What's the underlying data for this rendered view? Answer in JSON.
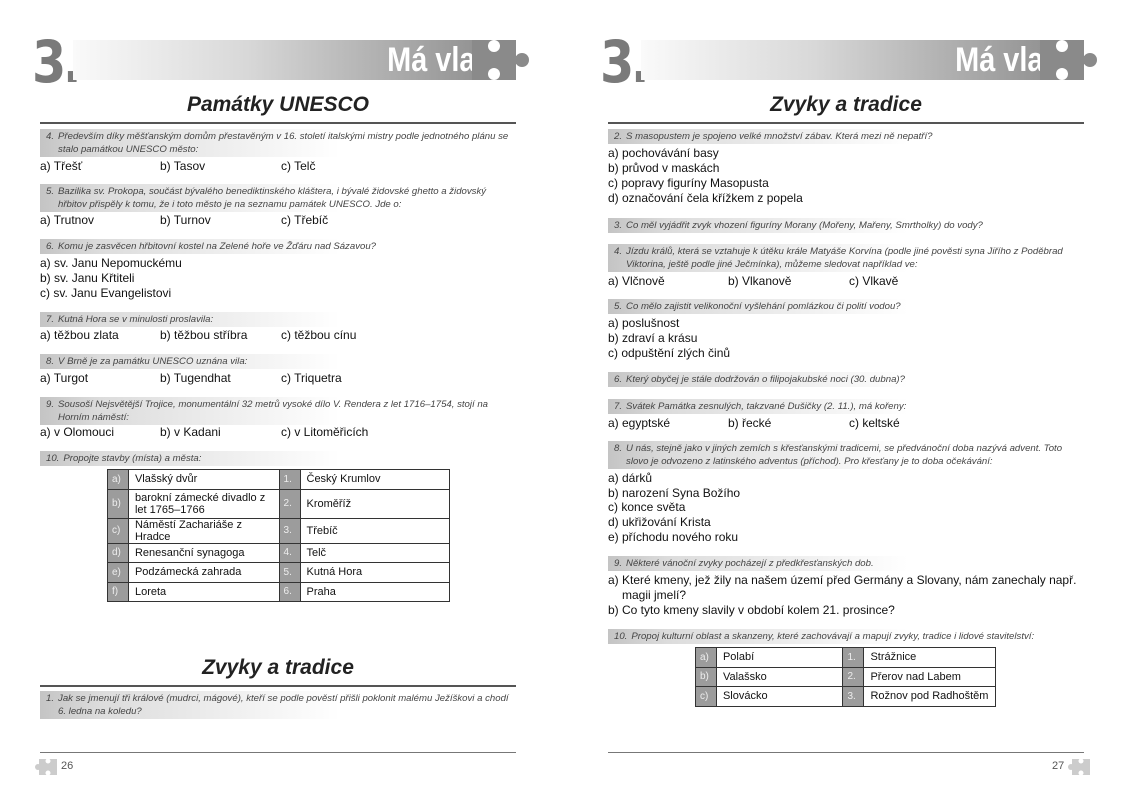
{
  "colors": {
    "band_dark": "#8a8a8a",
    "label_cell": "#9c9c9c",
    "rule": "#555555"
  },
  "left": {
    "chapter_number": "3.",
    "chapter_title": "Má vlast",
    "section_title": "Památky UNESCO",
    "questions": [
      {
        "num": "4.",
        "text": "Především díky měšťanským domům přestavěným v 16. století italskými mistry podle jednotného plánu se stalo památkou UNESCO město:",
        "answers": [
          "a) Třešť",
          "b) Tasov",
          "c) Telč"
        ],
        "inline": true
      },
      {
        "num": "5.",
        "text": "Bazilika sv. Prokopa, součást bývalého benediktinského kláštera, i bývalé židovské ghetto a židovský hřbitov přispěly k tomu, že i toto město je na seznamu památek UNESCO. Jde o:",
        "answers": [
          "a) Trutnov",
          "b) Turnov",
          "c) Třebíč"
        ],
        "inline": true
      },
      {
        "num": "6.",
        "text": "Komu je zasvěcen hřbitovní kostel na Zelené hoře ve Žďáru nad Sázavou?",
        "answers": [
          "a)  sv. Janu Nepomuckému",
          "b)  sv. Janu Křtiteli",
          "c)  sv. Janu Evangelistovi"
        ],
        "inline": false
      },
      {
        "num": "7.",
        "text": "Kutná Hora se v minulosti proslavila:",
        "answers": [
          "a) těžbou zlata",
          "b) těžbou stříbra",
          "c) těžbou cínu"
        ],
        "inline": true
      },
      {
        "num": "8.",
        "text": "V Brně je za památku UNESCO uznána vila:",
        "answers": [
          "a) Turgot",
          "b) Tugendhat",
          "c) Triquetra"
        ],
        "inline": true
      },
      {
        "num": "9.",
        "text": "Sousoší Nejsvětější Trojice, monumentální 32 metrů vysoké dílo V. Rendera z let 1716–1754, stojí na Horním náměstí:",
        "answers": [
          "a) v Olomouci",
          "b) v Kadani",
          "c) v Litoměřicích"
        ],
        "inline": true
      },
      {
        "num": "10.",
        "text": "Propojte stavby (místa) a města:",
        "answers": [],
        "inline": true
      }
    ],
    "table": [
      [
        "a)",
        "Vlašský dvůr",
        "1.",
        "Český Krumlov"
      ],
      [
        "b)",
        "barokní zámecké divadlo z let 1765–1766",
        "2.",
        "Kroměříž"
      ],
      [
        "c)",
        "Náměstí Zachariáše z Hradce",
        "3.",
        "Třebíč"
      ],
      [
        "d)",
        "Renesanční synagoga",
        "4.",
        "Telč"
      ],
      [
        "e)",
        "Podzámecká zahrada",
        "5.",
        "Kutná Hora"
      ],
      [
        "f)",
        "Loreta",
        "6.",
        "Praha"
      ]
    ],
    "section2_title": "Zvyky a tradice",
    "section2_questions": [
      {
        "num": "1.",
        "text": "Jak se jmenují tři králové (mudrci, mágové), kteří se podle pověstí přišli poklonit malému Ježíškovi a chodí 6. ledna na koledu?",
        "answers": [],
        "inline": true
      }
    ],
    "page_number": "26"
  },
  "right": {
    "chapter_number": "3.",
    "chapter_title": "Má vlast",
    "section_title": "Zvyky a tradice",
    "questions": [
      {
        "num": "2.",
        "text": "S masopustem je spojeno velké množství zábav. Která mezi ně nepatří?",
        "answers": [
          "a)  pochovávání basy",
          "b)  průvod v maskách",
          "c)  popravy figuríny Masopusta",
          "d)  označování čela křížkem z popela"
        ],
        "inline": false
      },
      {
        "num": "3.",
        "text": "Co měl vyjádřit zvyk vhození figuríny Morany (Mořeny, Mařeny, Smrtholky) do vody?",
        "answers": [],
        "inline": true
      },
      {
        "num": "4.",
        "text": "Jízdu králů, která se vztahuje k útěku krále Matyáše Korvína (podle jiné pověsti syna Jiřího z Poděbrad Viktorina, ještě podle jiné Ječmínka), můžeme sledovat například ve:",
        "answers": [
          "a) Vlčnově",
          "b) Vlkanově",
          "c) Vlkavě"
        ],
        "inline": true
      },
      {
        "num": "5.",
        "text": "Co mělo zajistit velikonoční vyšlehání pomlázkou či polití vodou?",
        "answers": [
          "a)  poslušnost",
          "b)  zdraví a krásu",
          "c)  odpuštění zlých činů"
        ],
        "inline": false
      },
      {
        "num": "6.",
        "text": "Který obyčej je stále dodržován o filipojakubské noci (30. dubna)?",
        "answers": [],
        "inline": true
      },
      {
        "num": "7.",
        "text": "Svátek Památka zesnulých, takzvané Dušičky (2. 11.), má kořeny:",
        "answers": [
          "a) egyptské",
          "b) řecké",
          "c) keltské"
        ],
        "inline": true
      },
      {
        "num": "8.",
        "text": "U nás, stejně jako v jiných zemích s křesťanskými tradicemi, se předvánoční doba nazývá advent. Toto slovo je odvozeno z latinského adventus (příchod). Pro křesťany je to doba očekávání:",
        "answers": [
          "a)  dárků",
          "b)  narození Syna Božího",
          "c)  konce světa",
          "d)  ukřižování Krista",
          "e)  příchodu nového roku"
        ],
        "inline": false
      },
      {
        "num": "9.",
        "text": "Některé vánoční zvyky pocházejí z předkřesťanských dob.",
        "answers": [
          "a)  Které kmeny, jež žily na našem území před Germány a Slovany, nám zanechaly např. magii jmelí?",
          "b)  Co tyto kmeny slavily v období kolem 21. prosince?"
        ],
        "inline": false
      },
      {
        "num": "10.",
        "text": "Propoj kulturní oblast a skanzeny, které zachovávají a mapují zvyky, tradice i lidové stavitelství:",
        "answers": [],
        "inline": true
      }
    ],
    "table": [
      [
        "a)",
        "Polabí",
        "1.",
        "Strážnice"
      ],
      [
        "b)",
        "Valašsko",
        "2.",
        "Přerov nad Labem"
      ],
      [
        "c)",
        "Slovácko",
        "3.",
        "Rožnov pod Radhoštěm"
      ]
    ],
    "page_number": "27"
  }
}
